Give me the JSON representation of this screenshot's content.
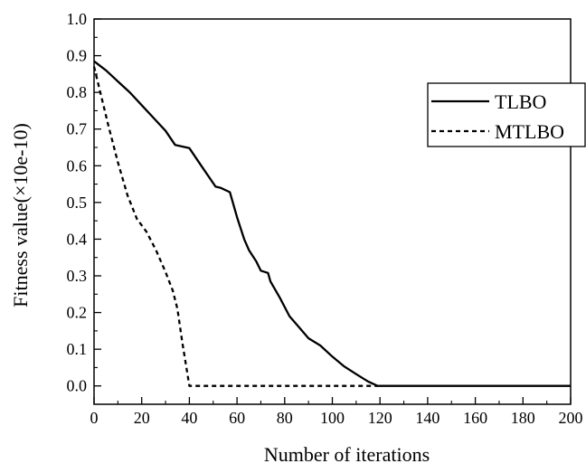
{
  "chart_data": {
    "type": "line",
    "xlabel": "Number of iterations",
    "ylabel": "Fitness value(×10e-10)",
    "xlim": [
      0,
      200
    ],
    "ylim": [
      -0.05,
      1.0
    ],
    "x_ticks": [
      0,
      20,
      40,
      60,
      80,
      100,
      120,
      140,
      160,
      180,
      200
    ],
    "y_ticks": [
      0.0,
      0.1,
      0.2,
      0.3,
      0.4,
      0.5,
      0.6,
      0.7,
      0.8,
      0.9,
      1.0
    ],
    "x_tick_labels": [
      "0",
      "20",
      "40",
      "60",
      "80",
      "100",
      "120",
      "140",
      "160",
      "180",
      "200"
    ],
    "y_tick_labels": [
      "0.0",
      "0.1",
      "0.2",
      "0.3",
      "0.4",
      "0.5",
      "0.6",
      "0.7",
      "0.8",
      "0.9",
      "1.0"
    ],
    "grid": false,
    "legend_position": "right",
    "series": [
      {
        "name": "TLBO",
        "style": "solid",
        "color": "#000000",
        "points": [
          [
            0,
            0.885
          ],
          [
            5,
            0.86
          ],
          [
            10,
            0.83
          ],
          [
            15,
            0.8
          ],
          [
            20,
            0.765
          ],
          [
            25,
            0.73
          ],
          [
            30,
            0.695
          ],
          [
            34,
            0.657
          ],
          [
            40,
            0.648
          ],
          [
            45,
            0.6
          ],
          [
            51,
            0.543
          ],
          [
            53,
            0.54
          ],
          [
            57,
            0.528
          ],
          [
            60,
            0.46
          ],
          [
            63,
            0.4
          ],
          [
            65,
            0.37
          ],
          [
            68,
            0.34
          ],
          [
            70,
            0.314
          ],
          [
            73,
            0.308
          ],
          [
            74,
            0.285
          ],
          [
            78,
            0.24
          ],
          [
            82,
            0.19
          ],
          [
            86,
            0.16
          ],
          [
            90,
            0.13
          ],
          [
            95,
            0.11
          ],
          [
            100,
            0.08
          ],
          [
            105,
            0.053
          ],
          [
            110,
            0.032
          ],
          [
            115,
            0.012
          ],
          [
            119,
            0.0
          ],
          [
            200,
            0.0
          ]
        ]
      },
      {
        "name": "MTLBO",
        "style": "dashed",
        "color": "#000000",
        "points": [
          [
            0,
            0.87
          ],
          [
            3,
            0.79
          ],
          [
            6,
            0.71
          ],
          [
            10,
            0.61
          ],
          [
            14,
            0.52
          ],
          [
            18,
            0.455
          ],
          [
            22,
            0.42
          ],
          [
            26,
            0.37
          ],
          [
            30,
            0.31
          ],
          [
            33,
            0.26
          ],
          [
            35,
            0.21
          ],
          [
            37,
            0.12
          ],
          [
            39,
            0.04
          ],
          [
            40,
            0.0
          ],
          [
            119,
            0.0
          ]
        ]
      }
    ]
  }
}
